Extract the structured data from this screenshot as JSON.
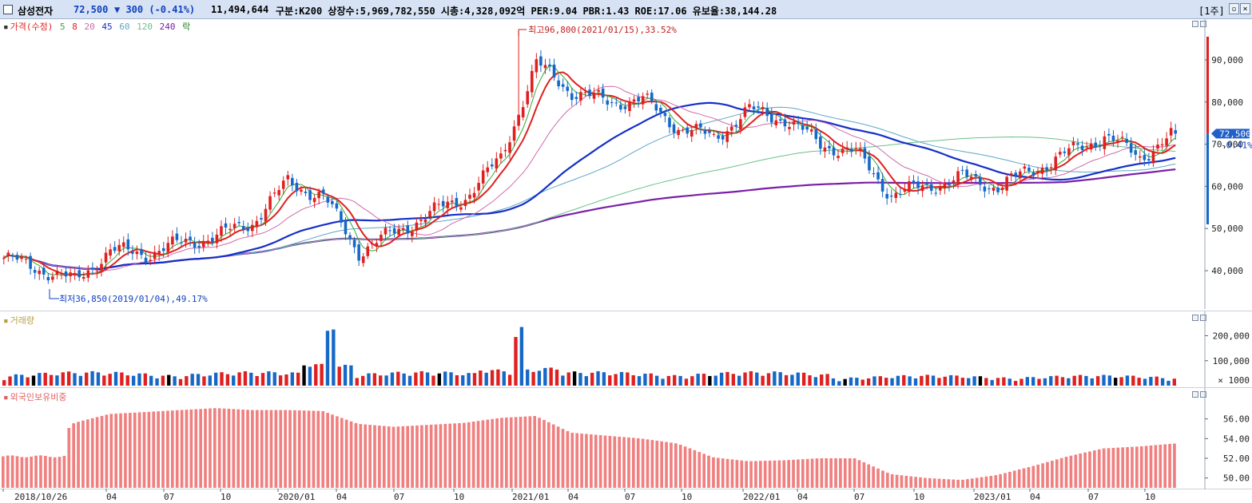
{
  "header": {
    "name": "삼성전자",
    "price": "72,500",
    "change": "▼ 300 (-0.41%)",
    "volume": "11,494,644",
    "info": "구분:K200 상장수:5,969,782,550 시총:4,328,092억 PER:9.04 PBR:1.43 ROE:17.06 유보율:38,144.28",
    "period_button": "[1주]"
  },
  "legend": {
    "price_label": "가격(수정)",
    "ma_labels": [
      "5",
      "8",
      "20",
      "45",
      "60",
      "120",
      "240"
    ],
    "extra_label": "락"
  },
  "annotations": {
    "high": "최고96,800(2021/01/15),33.52%",
    "low": "최저36,850(2019/01/04),49.17%",
    "price_tag": "72,500",
    "change_tag": "-0.41%"
  },
  "x_axis_labels": [
    "2018/10/26",
    "04",
    "07",
    "10",
    "2020/01",
    "04",
    "07",
    "10",
    "2021/01",
    "04",
    "07",
    "10",
    "2022/01",
    "04",
    "07",
    "10",
    "2023/01",
    "04",
    "07",
    "10"
  ],
  "chart_data": [
    {
      "type": "line",
      "name": "price",
      "legend": "가격(수정)",
      "x": [
        "2018/10",
        "2018/12",
        "2019/01",
        "2019/03",
        "2019/05",
        "2019/07",
        "2019/09",
        "2019/11",
        "2020/01",
        "2020/02",
        "2020/03",
        "2020/05",
        "2020/07",
        "2020/09",
        "2020/11",
        "2021/01",
        "2021/03",
        "2021/05",
        "2021/07",
        "2021/09",
        "2021/11",
        "2021/12",
        "2022/01",
        "2022/03",
        "2022/05",
        "2022/07",
        "2022/09",
        "2022/11",
        "2023/01",
        "2023/03",
        "2023/05",
        "2023/07",
        "2023/09",
        "2023/11"
      ],
      "close": [
        43000,
        40500,
        37500,
        44800,
        44000,
        46500,
        48200,
        51500,
        61000,
        57500,
        44500,
        49000,
        53500,
        57500,
        66500,
        89000,
        82500,
        80000,
        80500,
        74000,
        71500,
        78000,
        76000,
        70000,
        68000,
        58000,
        60000,
        62000,
        60000,
        64000,
        68000,
        72000,
        67000,
        72500
      ],
      "ylim": [
        33000,
        97000
      ],
      "ytick_labels": [
        "40,000",
        "50,000",
        "60,000",
        "70,000",
        "80,000",
        "90,000"
      ],
      "high_point": {
        "x": "2021/01/15",
        "value": 96800
      },
      "low_point": {
        "x": "2019/01/04",
        "value": 36850
      },
      "moving_averages": [
        {
          "name": "5",
          "color": "#33aa33"
        },
        {
          "name": "8",
          "color": "#e02020"
        },
        {
          "name": "20",
          "color": "#d06aa8"
        },
        {
          "name": "45",
          "color": "#1530c8"
        },
        {
          "name": "60",
          "color": "#5ba7c7"
        },
        {
          "name": "120",
          "color": "#6bc08a"
        },
        {
          "name": "240",
          "color": "#7a1fa8"
        }
      ]
    },
    {
      "type": "bar",
      "name": "volume",
      "legend": "거래량",
      "ylim": [
        0,
        240000
      ],
      "ytick_labels": [
        "100,000",
        "200,000"
      ],
      "unit": "× 1000",
      "peaks": [
        {
          "x": "2020/03",
          "value": 225000
        },
        {
          "x": "2021/01",
          "value": 235000
        }
      ]
    },
    {
      "type": "bar",
      "name": "foreign_ratio",
      "legend": "외국인보유비중",
      "ylim": [
        49,
        58
      ],
      "ytick_labels": [
        "50.00",
        "52.00",
        "54.00",
        "56.00"
      ],
      "x": [
        "2018/10",
        "2018/12",
        "2019/01",
        "2019/03",
        "2019/05",
        "2019/07",
        "2019/09",
        "2019/11",
        "2020/01",
        "2020/02",
        "2020/03",
        "2020/05",
        "2020/07",
        "2020/09",
        "2020/11",
        "2021/01",
        "2021/03",
        "2021/05",
        "2021/07",
        "2021/09",
        "2021/11",
        "2021/12",
        "2022/01",
        "2022/03",
        "2022/05",
        "2022/07",
        "2022/09",
        "2022/11",
        "2023/01",
        "2023/03",
        "2023/05",
        "2023/07",
        "2023/09",
        "2023/11"
      ],
      "values": [
        52.2,
        52.0,
        55.6,
        56.5,
        56.7,
        56.9,
        57.1,
        56.9,
        56.9,
        56.8,
        55.5,
        55.2,
        55.4,
        55.6,
        56.1,
        56.3,
        54.6,
        54.3,
        54.0,
        53.5,
        52.1,
        51.7,
        51.8,
        52.0,
        52.0,
        50.4,
        50.0,
        49.8,
        50.3,
        51.2,
        52.2,
        53.0,
        53.2,
        53.5
      ]
    }
  ],
  "colors": {
    "up": "#e02020",
    "down": "#1668c8",
    "neutral": "#000000",
    "foreign": "#f08080",
    "titlebar": "#d7e3f4"
  }
}
